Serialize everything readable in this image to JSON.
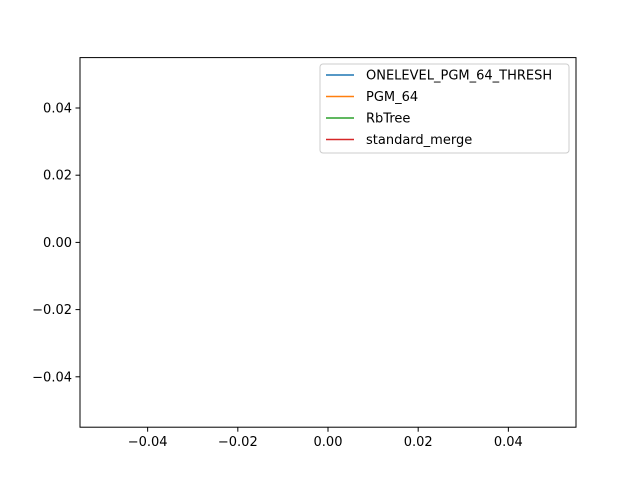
{
  "chart_data": {
    "type": "line",
    "title": "",
    "xlabel": "",
    "ylabel": "",
    "xlim": [
      -0.055,
      0.055
    ],
    "ylim": [
      -0.055,
      0.055
    ],
    "x_ticks": [
      -0.04,
      -0.02,
      0.0,
      0.02,
      0.04
    ],
    "x_tick_labels": [
      "−0.04",
      "−0.02",
      "0.00",
      "0.02",
      "0.04"
    ],
    "y_ticks": [
      -0.04,
      -0.02,
      0.0,
      0.02,
      0.04
    ],
    "y_tick_labels": [
      "−0.04",
      "−0.02",
      "0.00",
      "0.02",
      "0.04"
    ],
    "grid": false,
    "legend_position": "top-right",
    "series": [
      {
        "name": "ONELEVEL_PGM_64_THRESH",
        "color": "#1f77b4",
        "x": [],
        "y": []
      },
      {
        "name": "PGM_64",
        "color": "#ff7f0e",
        "x": [],
        "y": []
      },
      {
        "name": "RbTree",
        "color": "#2ca02c",
        "x": [],
        "y": []
      },
      {
        "name": "standard_merge",
        "color": "#d62728",
        "x": [],
        "y": []
      }
    ]
  }
}
